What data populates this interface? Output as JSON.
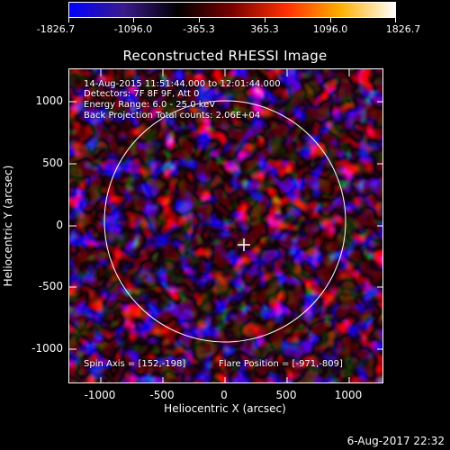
{
  "colorbar": {
    "ticks": [
      "-1826.7",
      "-1096.0",
      "-365.3",
      "365.3",
      "1096.0",
      "1826.7"
    ],
    "colors": [
      "#0000ff",
      "#3a1a8c",
      "#000000",
      "#7a0000",
      "#ff3000",
      "#ffb000",
      "#ffffff"
    ]
  },
  "title": "Reconstructed RHESSI Image",
  "info": {
    "time": "14-Aug-2015 11:51:44.000 to 12:01:44.000",
    "detectors": "Detectors: 7F 8F 9F, Att 0",
    "energy": "Energy Range: 6.0 - 25.0 keV",
    "method": "Back Projection     Total counts: 2.06E+04",
    "spin_axis": "Spin Axis = [152,-198]",
    "flare_position": "Flare Position = [-971,-809]"
  },
  "axes": {
    "xlabel": "Heliocentric X (arcsec)",
    "ylabel": "Heliocentric Y (arcsec)",
    "x_ticks": [
      "-1000",
      "-500",
      "0",
      "500",
      "1000"
    ],
    "y_ticks": [
      "1000",
      "500",
      "0",
      "-500",
      "-1000"
    ]
  },
  "timestamp": "6-Aug-2017 22:32"
}
